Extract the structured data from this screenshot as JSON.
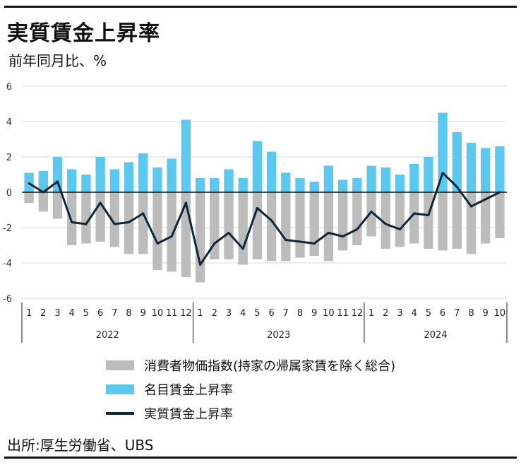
{
  "title": "実質賃金上昇率",
  "subtitle": "前年同月比、%",
  "source": "出所:厚生労働省、UBS",
  "colors": {
    "cpi": "#bcbcbc",
    "nominal": "#5cc8ef",
    "real": "#0f2738",
    "grid": "#d9d9d9",
    "axis": "#111111"
  },
  "chart_data": {
    "type": "bar",
    "title": "実質賃金上昇率",
    "ylabel": "前年同月比、%",
    "ylim": [
      -6,
      6
    ],
    "yticks": [
      6,
      4,
      2,
      0,
      -2,
      -4,
      -6
    ],
    "categories": [
      "1",
      "2",
      "3",
      "4",
      "5",
      "6",
      "7",
      "8",
      "9",
      "10",
      "11",
      "12",
      "1",
      "2",
      "3",
      "4",
      "5",
      "6",
      "7",
      "8",
      "9",
      "10",
      "11",
      "12",
      "1",
      "2",
      "3",
      "4",
      "5",
      "6",
      "7",
      "8",
      "9",
      "10"
    ],
    "year_groups": [
      {
        "label": "2022",
        "count": 12
      },
      {
        "label": "2023",
        "count": 12
      },
      {
        "label": "2024",
        "count": 10
      }
    ],
    "series": [
      {
        "name": "消費者物価指数(持家の帰属家賃を除く総合)",
        "type": "bar",
        "values": [
          -0.6,
          -1.1,
          -1.5,
          -3.0,
          -2.9,
          -2.8,
          -3.1,
          -3.5,
          -3.5,
          -4.4,
          -4.5,
          -4.8,
          -5.1,
          -3.8,
          -3.8,
          -4.1,
          -3.8,
          -3.9,
          -3.9,
          -3.7,
          -3.6,
          -3.9,
          -3.3,
          -3.0,
          -2.5,
          -3.2,
          -3.1,
          -2.9,
          -3.2,
          -3.3,
          -3.2,
          -3.5,
          -2.9,
          -2.6
        ]
      },
      {
        "name": "名目賃金上昇率",
        "type": "bar",
        "values": [
          1.1,
          1.2,
          2.0,
          1.3,
          1.0,
          2.0,
          1.3,
          1.7,
          2.2,
          1.4,
          1.9,
          4.1,
          0.8,
          0.8,
          1.3,
          0.8,
          2.9,
          2.3,
          1.1,
          0.8,
          0.6,
          1.5,
          0.7,
          0.8,
          1.5,
          1.4,
          1.0,
          1.6,
          2.0,
          4.5,
          3.4,
          2.8,
          2.5,
          2.6
        ]
      },
      {
        "name": "実質賃金上昇率",
        "type": "line",
        "values": [
          0.5,
          0.0,
          0.6,
          -1.7,
          -1.8,
          -0.6,
          -1.8,
          -1.7,
          -1.2,
          -2.9,
          -2.5,
          -0.6,
          -4.1,
          -2.9,
          -2.3,
          -3.2,
          -0.9,
          -1.6,
          -2.7,
          -2.8,
          -2.9,
          -2.3,
          -2.5,
          -2.1,
          -1.1,
          -1.8,
          -2.1,
          -1.2,
          -1.3,
          1.1,
          0.3,
          -0.8,
          -0.4,
          0.0
        ]
      }
    ],
    "legend_position": "bottom",
    "grid": true
  }
}
